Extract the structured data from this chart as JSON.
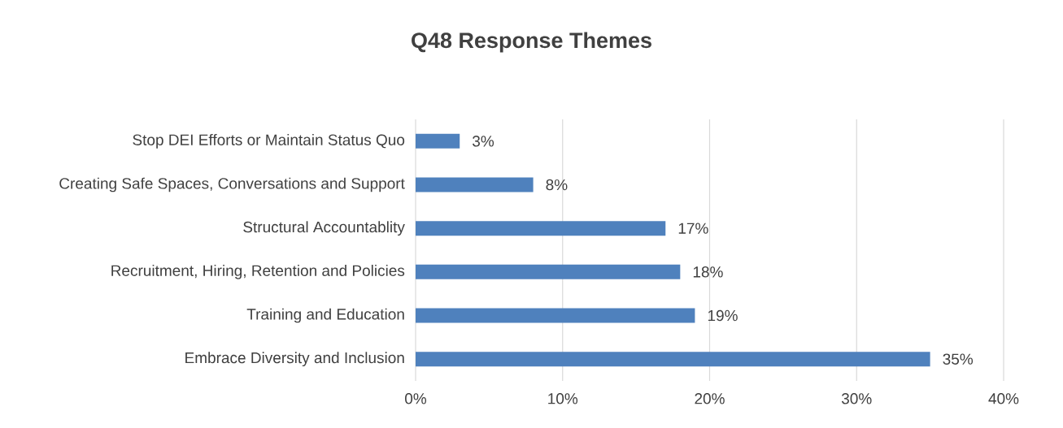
{
  "chart_data": {
    "type": "bar",
    "orientation": "horizontal",
    "title": "Q48 Response Themes",
    "categories": [
      "Stop DEI Efforts or Maintain Status Quo",
      "Creating Safe Spaces, Conversations and Support",
      "Structural Accountablity",
      "Recruitment, Hiring, Retention and Policies",
      "Training and Education",
      "Embrace Diversity and Inclusion"
    ],
    "values": [
      3,
      8,
      17,
      18,
      19,
      35
    ],
    "value_labels": [
      "3%",
      "8%",
      "17%",
      "18%",
      "19%",
      "35%"
    ],
    "color": "#4f81bd",
    "xlim": [
      0,
      40
    ],
    "xticks": [
      {
        "value": 0,
        "label": "0%"
      },
      {
        "value": 10,
        "label": "10%"
      },
      {
        "value": 20,
        "label": "20%"
      },
      {
        "value": 30,
        "label": "30%"
      },
      {
        "value": 40,
        "label": "40%"
      }
    ],
    "grid": "x"
  }
}
